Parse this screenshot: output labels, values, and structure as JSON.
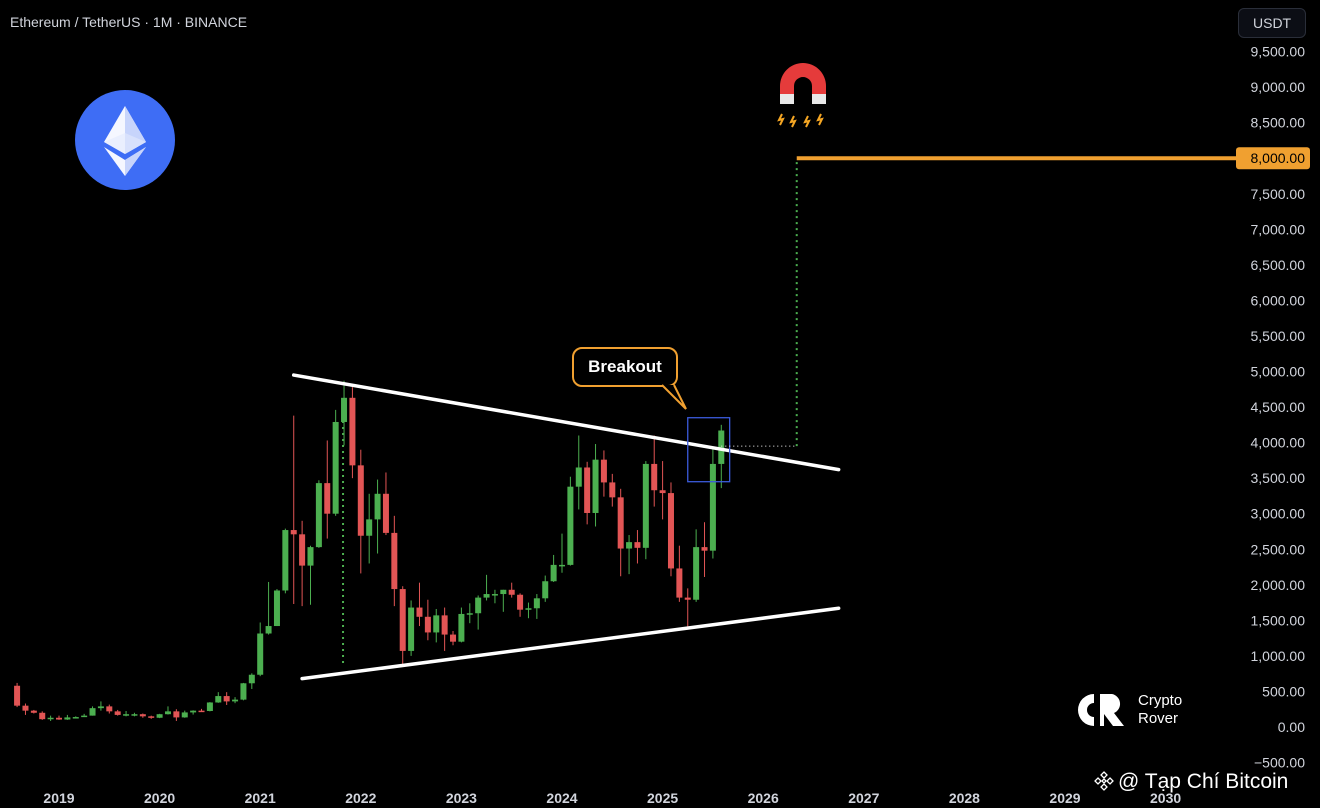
{
  "header": {
    "symbol_title": "Ethereum / TetherUS · 1M · BINANCE"
  },
  "unit_button": {
    "label": "USDT"
  },
  "annotations": {
    "breakout_label": "Breakout"
  },
  "branding": {
    "crypto_rover": "Crypto\nRover",
    "watermark": "@ Tạp Chí Bitcoin"
  },
  "colors": {
    "up": "#4caf50",
    "down": "#e25555",
    "target_line": "#f0a030",
    "trendline": "#ffffff",
    "eth_logo": "#3e6df5"
  },
  "icons": [
    "ethereum-logo-icon",
    "magnet-icon",
    "crypto-rover-logo-icon",
    "binance-diamond-icon"
  ],
  "chart_data": {
    "type": "candlestick",
    "title": "Ethereum / TetherUS · 1M · BINANCE",
    "ylabel": "USDT",
    "ylim": [
      -500,
      9800
    ],
    "y_ticks": [
      -500,
      0,
      500,
      1000,
      1500,
      2000,
      2500,
      3000,
      3500,
      4000,
      4500,
      5000,
      5500,
      6000,
      6500,
      7000,
      7500,
      8000,
      8500,
      9000,
      9500
    ],
    "y_tick_labels": [
      "−500.00",
      "0.00",
      "500.00",
      "1,000.00",
      "1,500.00",
      "2,000.00",
      "2,500.00",
      "3,000.00",
      "3,500.00",
      "4,000.00",
      "4,500.00",
      "5,000.00",
      "5,500.00",
      "6,000.00",
      "6,500.00",
      "7,000.00",
      "7,500.00",
      "8,000.00",
      "8,500.00",
      "9,000.00",
      "9,500.00"
    ],
    "x_ticks": [
      "2019",
      "2020",
      "2021",
      "2022",
      "2023",
      "2024",
      "2025",
      "2026",
      "2027",
      "2028",
      "2029",
      "2030"
    ],
    "target_level": {
      "value": 8000,
      "label": "8,000.00",
      "start": "2026-05"
    },
    "measure": {
      "date": "2026-05",
      "from": 3950,
      "to": 7950
    },
    "breakout_level": {
      "value": 3950,
      "from": "2025-08",
      "to": "2026-05"
    },
    "upper_trendline": [
      [
        "2021-05",
        4950
      ],
      [
        "2026-10",
        3620
      ]
    ],
    "lower_trendline": [
      [
        "2021-06",
        680
      ],
      [
        "2026-10",
        1670
      ]
    ],
    "highlight_box": {
      "from": "2025-04",
      "to": "2025-09",
      "low": 3450,
      "high": 4350
    },
    "ath_marker": {
      "date": "2021-11",
      "from": 900,
      "to": 4400
    },
    "candles": [
      [
        "2018-08",
        580,
        620,
        280,
        300
      ],
      [
        "2018-09",
        300,
        330,
        170,
        230
      ],
      [
        "2018-10",
        230,
        240,
        190,
        200
      ],
      [
        "2018-11",
        200,
        220,
        100,
        110
      ],
      [
        "2018-12",
        110,
        160,
        85,
        130
      ],
      [
        "2019-01",
        130,
        160,
        100,
        105
      ],
      [
        "2019-02",
        105,
        170,
        100,
        135
      ],
      [
        "2019-03",
        135,
        150,
        125,
        140
      ],
      [
        "2019-04",
        140,
        185,
        140,
        160
      ],
      [
        "2019-05",
        160,
        290,
        160,
        265
      ],
      [
        "2019-06",
        265,
        360,
        230,
        290
      ],
      [
        "2019-07",
        290,
        315,
        190,
        220
      ],
      [
        "2019-08",
        220,
        240,
        160,
        170
      ],
      [
        "2019-09",
        170,
        225,
        150,
        180
      ],
      [
        "2019-10",
        180,
        200,
        150,
        180
      ],
      [
        "2019-11",
        180,
        190,
        130,
        150
      ],
      [
        "2019-12",
        150,
        160,
        115,
        130
      ],
      [
        "2020-01",
        130,
        185,
        125,
        180
      ],
      [
        "2020-02",
        180,
        290,
        175,
        220
      ],
      [
        "2020-03",
        220,
        250,
        85,
        135
      ],
      [
        "2020-04",
        135,
        230,
        130,
        205
      ],
      [
        "2020-05",
        205,
        235,
        175,
        230
      ],
      [
        "2020-06",
        230,
        255,
        215,
        225
      ],
      [
        "2020-07",
        225,
        350,
        220,
        345
      ],
      [
        "2020-08",
        345,
        490,
        340,
        435
      ],
      [
        "2020-09",
        435,
        490,
        310,
        360
      ],
      [
        "2020-10",
        360,
        420,
        335,
        385
      ],
      [
        "2020-11",
        385,
        620,
        375,
        615
      ],
      [
        "2020-12",
        615,
        755,
        535,
        735
      ],
      [
        "2021-01",
        735,
        1470,
        715,
        1315
      ],
      [
        "2021-02",
        1315,
        2040,
        1300,
        1420
      ],
      [
        "2021-03",
        1420,
        1940,
        1420,
        1920
      ],
      [
        "2021-04",
        1920,
        2790,
        1880,
        2770
      ],
      [
        "2021-05",
        2770,
        4380,
        1730,
        2710
      ],
      [
        "2021-06",
        2710,
        2900,
        1700,
        2270
      ],
      [
        "2021-07",
        2270,
        2550,
        1720,
        2530
      ],
      [
        "2021-08",
        2530,
        3470,
        2520,
        3430
      ],
      [
        "2021-09",
        3430,
        4030,
        2650,
        3000
      ],
      [
        "2021-10",
        3000,
        4460,
        2970,
        4290
      ],
      [
        "2021-11",
        4290,
        4870,
        3960,
        4630
      ],
      [
        "2021-12",
        4630,
        4780,
        3500,
        3680
      ],
      [
        "2022-01",
        3680,
        3900,
        2160,
        2690
      ],
      [
        "2022-02",
        2690,
        3280,
        2300,
        2920
      ],
      [
        "2022-03",
        2920,
        3480,
        2440,
        3280
      ],
      [
        "2022-04",
        3280,
        3580,
        2700,
        2730
      ],
      [
        "2022-05",
        2730,
        2970,
        1700,
        1940
      ],
      [
        "2022-06",
        1940,
        1980,
        880,
        1070
      ],
      [
        "2022-07",
        1070,
        1780,
        1000,
        1680
      ],
      [
        "2022-08",
        1680,
        2030,
        1420,
        1550
      ],
      [
        "2022-09",
        1550,
        1790,
        1220,
        1330
      ],
      [
        "2022-10",
        1330,
        1660,
        1190,
        1570
      ],
      [
        "2022-11",
        1570,
        1680,
        1070,
        1300
      ],
      [
        "2022-12",
        1300,
        1350,
        1150,
        1200
      ],
      [
        "2023-01",
        1200,
        1680,
        1190,
        1590
      ],
      [
        "2023-02",
        1590,
        1740,
        1460,
        1600
      ],
      [
        "2023-03",
        1600,
        1850,
        1370,
        1820
      ],
      [
        "2023-04",
        1820,
        2140,
        1780,
        1870
      ],
      [
        "2023-05",
        1870,
        1930,
        1740,
        1870
      ],
      [
        "2023-06",
        1870,
        1930,
        1620,
        1930
      ],
      [
        "2023-07",
        1930,
        2030,
        1820,
        1860
      ],
      [
        "2023-08",
        1860,
        1880,
        1550,
        1650
      ],
      [
        "2023-09",
        1650,
        1750,
        1530,
        1670
      ],
      [
        "2023-10",
        1670,
        1870,
        1520,
        1810
      ],
      [
        "2023-11",
        1810,
        2130,
        1760,
        2050
      ],
      [
        "2023-12",
        2050,
        2420,
        2040,
        2280
      ],
      [
        "2024-01",
        2280,
        2720,
        2170,
        2280
      ],
      [
        "2024-02",
        2280,
        3520,
        2270,
        3380
      ],
      [
        "2024-03",
        3380,
        4100,
        3060,
        3650
      ],
      [
        "2024-04",
        3650,
        3730,
        2850,
        3010
      ],
      [
        "2024-05",
        3010,
        3980,
        2820,
        3760
      ],
      [
        "2024-06",
        3760,
        3890,
        3240,
        3440
      ],
      [
        "2024-07",
        3440,
        3560,
        3100,
        3230
      ],
      [
        "2024-08",
        3230,
        3350,
        2120,
        2510
      ],
      [
        "2024-09",
        2510,
        2700,
        2150,
        2600
      ],
      [
        "2024-10",
        2600,
        2770,
        2300,
        2520
      ],
      [
        "2024-11",
        2520,
        3740,
        2360,
        3700
      ],
      [
        "2024-12",
        3700,
        4100,
        3100,
        3330
      ],
      [
        "2025-01",
        3330,
        3740,
        2920,
        3290
      ],
      [
        "2025-02",
        3290,
        3440,
        2120,
        2230
      ],
      [
        "2025-03",
        2230,
        2550,
        1760,
        1820
      ],
      [
        "2025-04",
        1820,
        1950,
        1380,
        1790
      ],
      [
        "2025-05",
        1790,
        2780,
        1760,
        2530
      ],
      [
        "2025-06",
        2530,
        2880,
        2110,
        2480
      ],
      [
        "2025-07",
        2480,
        3940,
        2370,
        3700
      ],
      [
        "2025-08",
        3700,
        4250,
        3360,
        4170
      ]
    ]
  }
}
